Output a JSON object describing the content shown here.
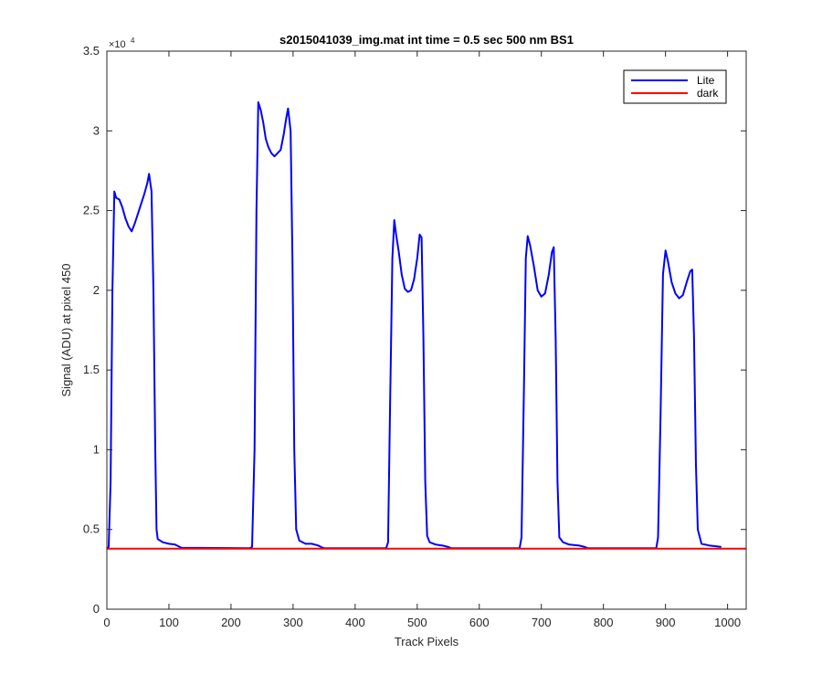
{
  "chart_data": {
    "type": "line",
    "title": "s2015041039_img.mat int time = 0.5 sec  500 nm BS1",
    "xlabel": "Track Pixels",
    "ylabel": "Signal (ADU) at pixel 450",
    "xlim": [
      0,
      1030
    ],
    "ylim": [
      0,
      35000
    ],
    "x_ticks": [
      0,
      100,
      200,
      300,
      400,
      500,
      600,
      700,
      800,
      900,
      1000
    ],
    "y_ticks": [
      0,
      5000,
      10000,
      15000,
      20000,
      25000,
      30000,
      35000
    ],
    "y_tick_labels": [
      "0",
      "0.5",
      "1",
      "1.5",
      "2",
      "2.5",
      "3",
      "3.5"
    ],
    "y_exponent_label": "×10",
    "y_exponent_power": "4",
    "grid": false,
    "legend_position": "top-right",
    "series": [
      {
        "name": "Lite",
        "color": "#0000ff",
        "points": [
          [
            0,
            3800
          ],
          [
            3,
            3900
          ],
          [
            6,
            8000
          ],
          [
            9,
            20000
          ],
          [
            12,
            26200
          ],
          [
            15,
            25800
          ],
          [
            20,
            25700
          ],
          [
            25,
            25200
          ],
          [
            30,
            24500
          ],
          [
            35,
            24000
          ],
          [
            40,
            23700
          ],
          [
            45,
            24200
          ],
          [
            50,
            24800
          ],
          [
            55,
            25400
          ],
          [
            60,
            26000
          ],
          [
            65,
            26700
          ],
          [
            68,
            27300
          ],
          [
            72,
            26200
          ],
          [
            75,
            20000
          ],
          [
            78,
            10000
          ],
          [
            80,
            5000
          ],
          [
            82,
            4400
          ],
          [
            90,
            4200
          ],
          [
            100,
            4100
          ],
          [
            110,
            4050
          ],
          [
            115,
            3950
          ],
          [
            120,
            3850
          ],
          [
            230,
            3820
          ],
          [
            234,
            3900
          ],
          [
            238,
            10000
          ],
          [
            241,
            25000
          ],
          [
            244,
            31800
          ],
          [
            248,
            31300
          ],
          [
            252,
            30500
          ],
          [
            256,
            29500
          ],
          [
            260,
            29000
          ],
          [
            265,
            28600
          ],
          [
            270,
            28400
          ],
          [
            275,
            28600
          ],
          [
            280,
            28800
          ],
          [
            285,
            29800
          ],
          [
            289,
            30800
          ],
          [
            292,
            31400
          ],
          [
            296,
            30000
          ],
          [
            299,
            22000
          ],
          [
            302,
            10000
          ],
          [
            305,
            5000
          ],
          [
            310,
            4300
          ],
          [
            320,
            4100
          ],
          [
            330,
            4100
          ],
          [
            340,
            4000
          ],
          [
            345,
            3900
          ],
          [
            350,
            3820
          ],
          [
            450,
            3820
          ],
          [
            453,
            4200
          ],
          [
            456,
            12000
          ],
          [
            460,
            22000
          ],
          [
            463,
            24400
          ],
          [
            466,
            23500
          ],
          [
            470,
            22500
          ],
          [
            475,
            21000
          ],
          [
            480,
            20100
          ],
          [
            485,
            19900
          ],
          [
            490,
            20000
          ],
          [
            495,
            20700
          ],
          [
            500,
            22000
          ],
          [
            504,
            23500
          ],
          [
            507,
            23300
          ],
          [
            510,
            17000
          ],
          [
            513,
            8000
          ],
          [
            516,
            4600
          ],
          [
            520,
            4200
          ],
          [
            530,
            4050
          ],
          [
            540,
            4000
          ],
          [
            550,
            3900
          ],
          [
            555,
            3820
          ],
          [
            665,
            3820
          ],
          [
            668,
            4500
          ],
          [
            672,
            14000
          ],
          [
            675,
            22000
          ],
          [
            678,
            23400
          ],
          [
            682,
            22800
          ],
          [
            688,
            21500
          ],
          [
            694,
            20000
          ],
          [
            700,
            19600
          ],
          [
            706,
            19800
          ],
          [
            712,
            21000
          ],
          [
            717,
            22400
          ],
          [
            720,
            22700
          ],
          [
            723,
            17000
          ],
          [
            726,
            8000
          ],
          [
            729,
            4500
          ],
          [
            735,
            4200
          ],
          [
            745,
            4050
          ],
          [
            760,
            4000
          ],
          [
            770,
            3900
          ],
          [
            775,
            3820
          ],
          [
            885,
            3820
          ],
          [
            888,
            4500
          ],
          [
            892,
            12000
          ],
          [
            896,
            21000
          ],
          [
            900,
            22500
          ],
          [
            904,
            21800
          ],
          [
            910,
            20500
          ],
          [
            916,
            19800
          ],
          [
            922,
            19500
          ],
          [
            928,
            19700
          ],
          [
            934,
            20500
          ],
          [
            940,
            21200
          ],
          [
            943,
            21300
          ],
          [
            946,
            17000
          ],
          [
            949,
            9000
          ],
          [
            952,
            5000
          ],
          [
            958,
            4100
          ],
          [
            970,
            4000
          ],
          [
            980,
            3950
          ],
          [
            990,
            3900
          ]
        ]
      },
      {
        "name": "dark",
        "color": "#ff0000",
        "points": [
          [
            0,
            3800
          ],
          [
            1030,
            3800
          ]
        ]
      }
    ]
  }
}
